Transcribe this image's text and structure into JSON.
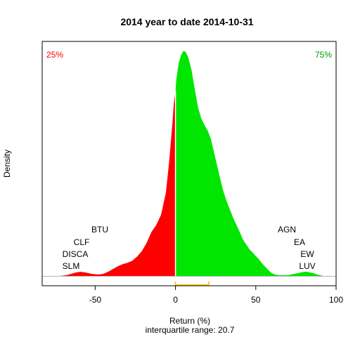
{
  "chart_data": {
    "type": "area",
    "title": "2014  year to date 2014-10-31",
    "xlabel": "Return (%)",
    "ylabel": "Density",
    "subtitle": "interquartile range: 20.7",
    "xlim": [
      -83,
      100
    ],
    "xticks": [
      -50,
      0,
      50,
      100
    ],
    "median": 0,
    "quartile_box": [
      0,
      20.7
    ],
    "left_label": "25%",
    "right_label": "75%",
    "left_tickers": [
      "BTU",
      "CLF",
      "DISCA",
      "SLM"
    ],
    "right_tickers": [
      "AGN",
      "EA",
      "EW",
      "LUV"
    ],
    "colors": {
      "below_median": "#ff0000",
      "above_median": "#00e600",
      "iqr": "#ffcc00"
    },
    "density": {
      "x": [
        -72,
        -68,
        -65,
        -62,
        -59,
        -56,
        -52,
        -48,
        -45,
        -42,
        -39,
        -36,
        -33,
        -30,
        -27,
        -24,
        -21,
        -18,
        -15,
        -12,
        -9,
        -6,
        -4,
        -2,
        -1,
        0,
        0.5,
        2,
        3.5,
        5,
        6.5,
        8,
        10,
        12,
        14,
        16,
        18,
        20,
        22,
        24,
        26,
        28,
        30,
        32,
        34,
        36,
        38,
        40,
        42,
        44,
        46,
        48,
        50,
        52,
        54,
        56,
        58,
        60,
        62,
        64,
        66,
        68,
        70,
        72,
        74,
        76,
        78,
        80,
        82,
        84,
        86,
        88,
        90,
        92
      ],
      "y": [
        0,
        0.001,
        0.003,
        0.005,
        0.006,
        0.005,
        0.003,
        0.002,
        0.003,
        0.006,
        0.01,
        0.014,
        0.017,
        0.019,
        0.022,
        0.028,
        0.036,
        0.048,
        0.064,
        0.074,
        0.089,
        0.121,
        0.165,
        0.22,
        0.252,
        0.27,
        0.286,
        0.31,
        0.322,
        0.328,
        0.326,
        0.318,
        0.3,
        0.272,
        0.246,
        0.23,
        0.22,
        0.212,
        0.2,
        0.18,
        0.16,
        0.14,
        0.122,
        0.108,
        0.096,
        0.084,
        0.074,
        0.064,
        0.053,
        0.046,
        0.039,
        0.034,
        0.029,
        0.024,
        0.018,
        0.013,
        0.008,
        0.004,
        0.002,
        0.001,
        0.001,
        0.001,
        0.001,
        0.002,
        0.003,
        0.004,
        0.005,
        0.006,
        0.006,
        0.005,
        0.004,
        0.002,
        0.001,
        0
      ]
    }
  }
}
